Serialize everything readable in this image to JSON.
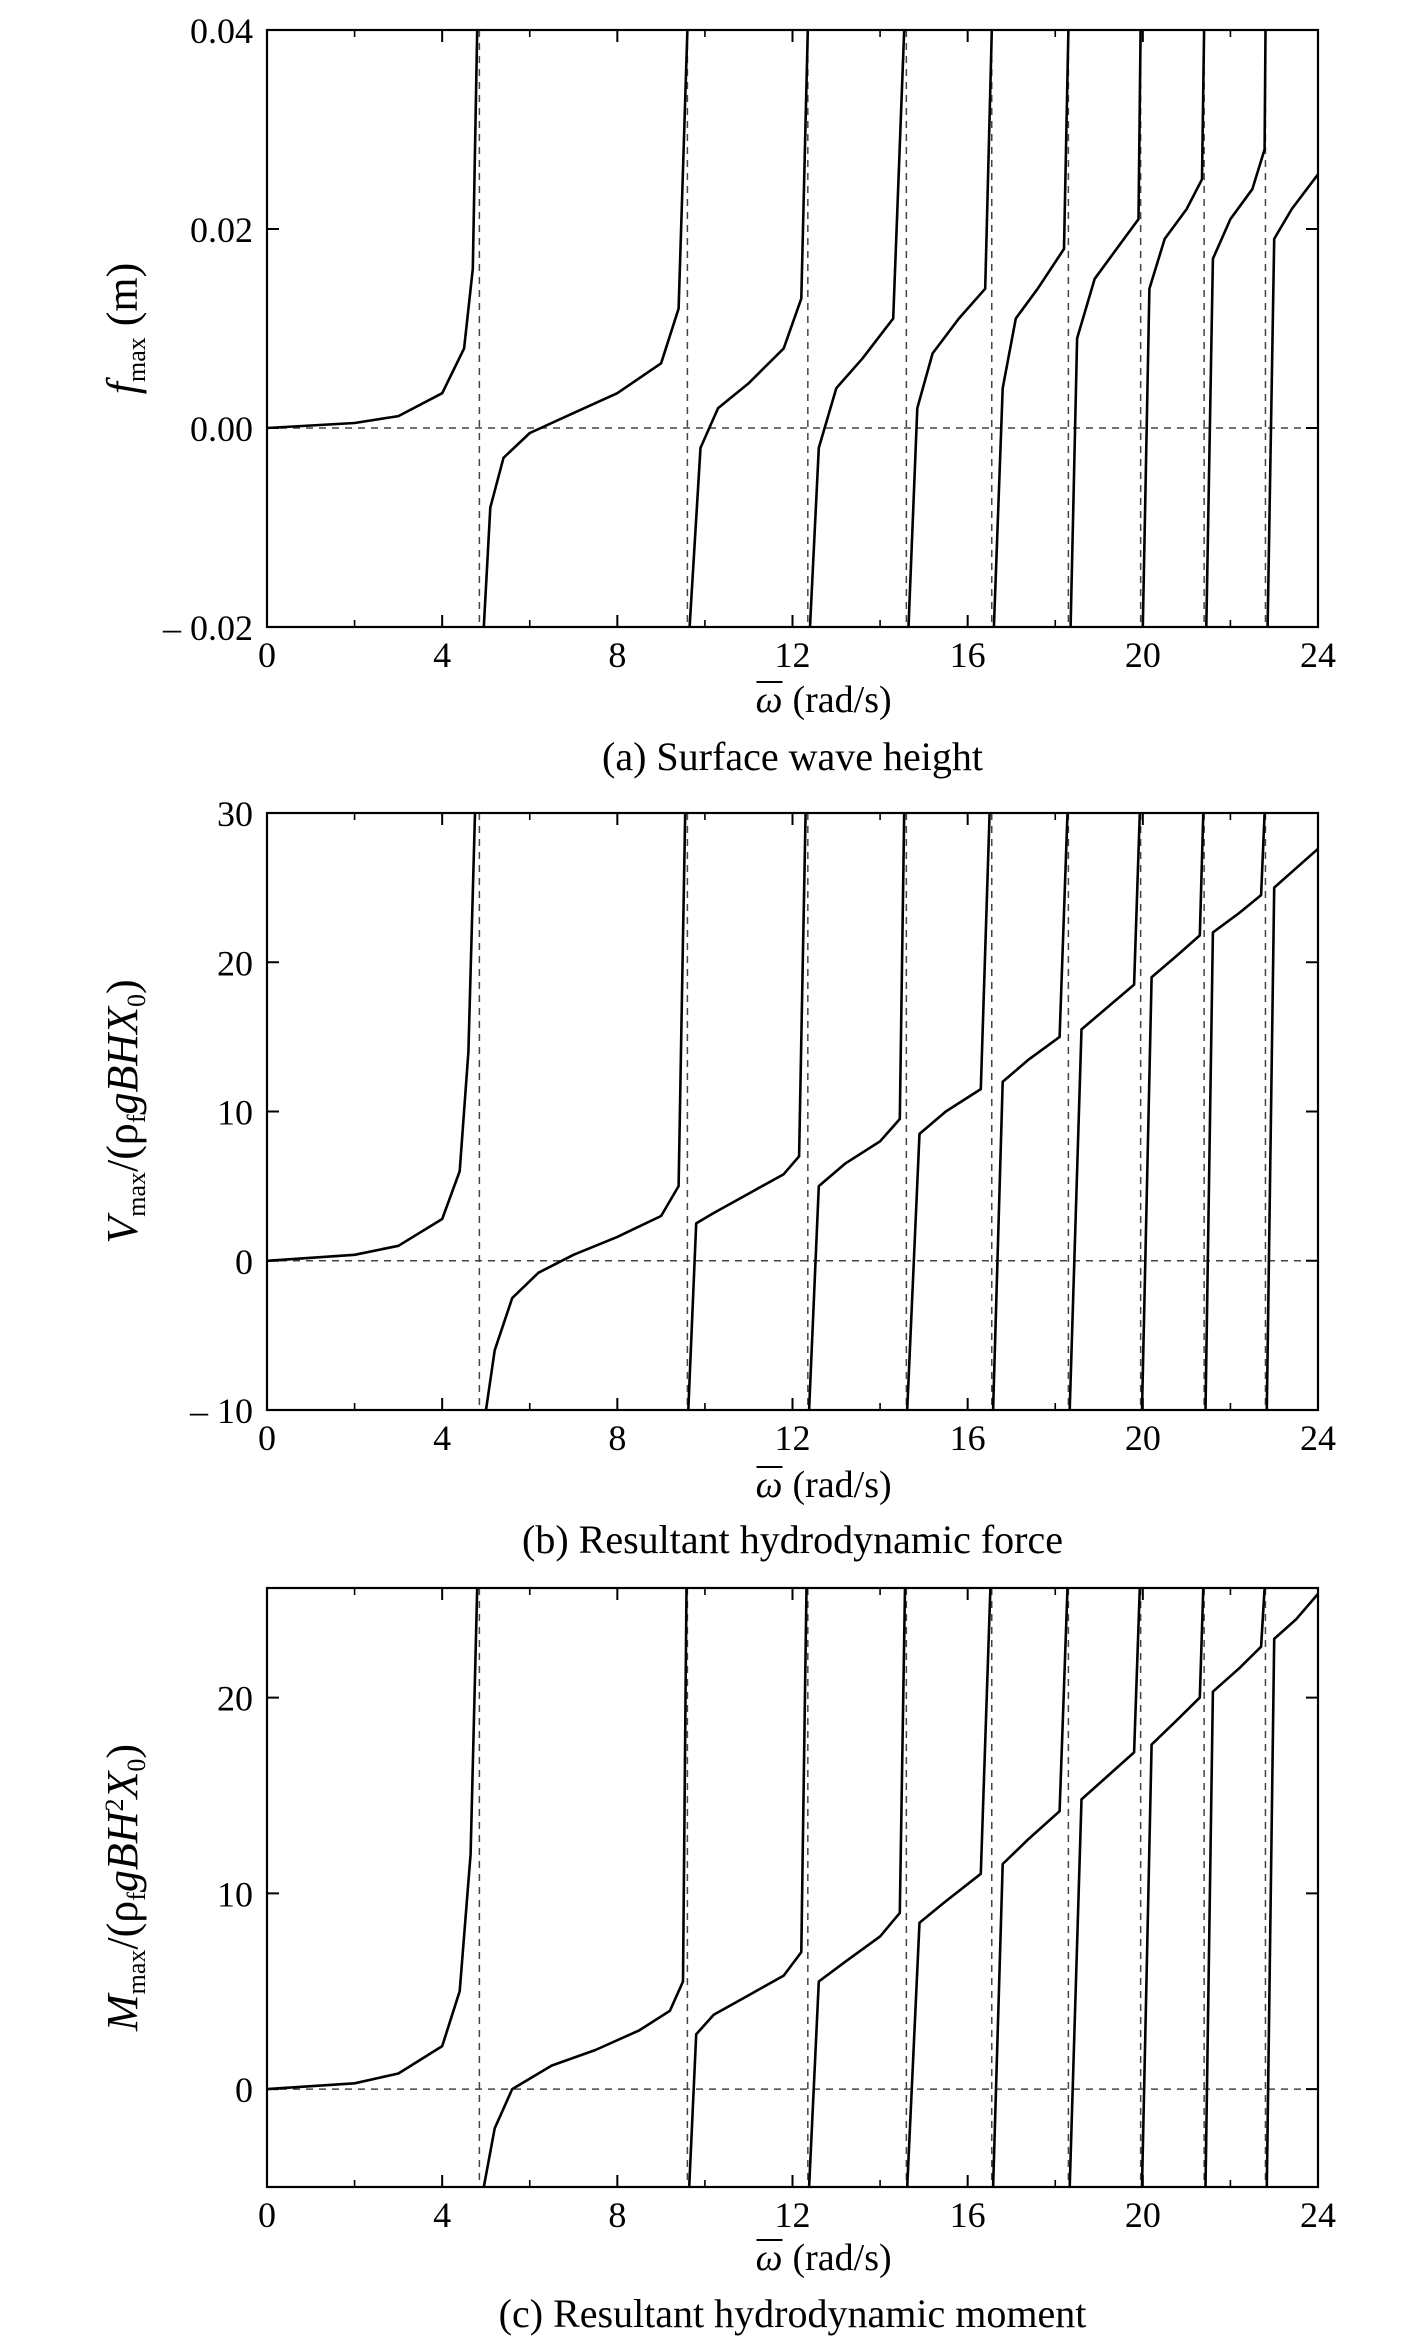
{
  "chart_data": [
    {
      "type": "line",
      "caption": "(a) Surface wave height",
      "ylabel_parts": {
        "sym": "f",
        "sub": "max",
        "rest": " (m)"
      },
      "xlabel": "(rad/s)",
      "xlabel_symbol": "ω",
      "xlim": [
        0,
        24
      ],
      "ylim": [
        -0.02,
        0.04
      ],
      "xticks": [
        0,
        4,
        8,
        12,
        16,
        20,
        24
      ],
      "xtick_labels": [
        "0",
        "4",
        "8",
        "12",
        "16",
        "20",
        "24"
      ],
      "yticks": [
        -0.02,
        0.0,
        0.02,
        0.04
      ],
      "ytick_labels": [
        "– 0.02",
        "0.00",
        "0.02",
        "0.04"
      ],
      "reference_lines": {
        "y": [
          0
        ],
        "x": [
          4.85,
          9.6,
          12.35,
          14.6,
          16.55,
          18.3,
          19.95,
          21.4,
          22.8
        ]
      },
      "series": [
        {
          "x": [
            0,
            2,
            3,
            4,
            4.5,
            4.7,
            4.8
          ],
          "y": [
            0,
            0.0005,
            0.0012,
            0.0035,
            0.008,
            0.016,
            0.04
          ]
        },
        {
          "x": [
            4.95,
            5.1,
            5.4,
            6.0,
            7.0,
            8.0,
            9.0,
            9.4,
            9.6
          ],
          "y": [
            -0.02,
            -0.008,
            -0.003,
            -0.0005,
            0.0015,
            0.0035,
            0.0065,
            0.012,
            0.04
          ]
        },
        {
          "x": [
            9.65,
            9.9,
            10.3,
            11.0,
            11.8,
            12.2,
            12.35
          ],
          "y": [
            -0.02,
            -0.002,
            0.002,
            0.0045,
            0.008,
            0.013,
            0.04
          ]
        },
        {
          "x": [
            12.4,
            12.6,
            13.0,
            13.6,
            14.3,
            14.55
          ],
          "y": [
            -0.02,
            -0.002,
            0.004,
            0.007,
            0.011,
            0.04
          ]
        },
        {
          "x": [
            14.65,
            14.85,
            15.2,
            15.8,
            16.4,
            16.55
          ],
          "y": [
            -0.02,
            0.002,
            0.0075,
            0.011,
            0.014,
            0.04
          ]
        },
        {
          "x": [
            16.6,
            16.8,
            17.1,
            17.6,
            18.2,
            18.3
          ],
          "y": [
            -0.02,
            0.004,
            0.011,
            0.014,
            0.018,
            0.04
          ]
        },
        {
          "x": [
            18.35,
            18.5,
            18.9,
            19.4,
            19.9,
            19.95
          ],
          "y": [
            -0.02,
            0.009,
            0.015,
            0.018,
            0.021,
            0.04
          ]
        },
        {
          "x": [
            20.0,
            20.15,
            20.5,
            21.0,
            21.35,
            21.4
          ],
          "y": [
            -0.02,
            0.014,
            0.019,
            0.022,
            0.025,
            0.04
          ]
        },
        {
          "x": [
            21.45,
            21.6,
            22.0,
            22.5,
            22.78,
            22.8
          ],
          "y": [
            -0.02,
            0.017,
            0.021,
            0.024,
            0.028,
            0.04
          ]
        },
        {
          "x": [
            22.85,
            23.0,
            23.4,
            24.0
          ],
          "y": [
            -0.02,
            0.019,
            0.022,
            0.0255
          ]
        }
      ]
    },
    {
      "type": "line",
      "caption": "(b) Resultant hydrodynamic force",
      "ylabel_parts": {
        "sym": "V",
        "sub": "max",
        "rest": "/(ρ",
        "sub2": "f",
        "rest2": "gBHX",
        "sub3": "0",
        "rest3": ")"
      },
      "xlabel": "(rad/s)",
      "xlabel_symbol": "ω",
      "xlim": [
        0,
        24
      ],
      "ylim": [
        -10,
        30
      ],
      "xticks": [
        0,
        4,
        8,
        12,
        16,
        20,
        24
      ],
      "xtick_labels": [
        "0",
        "4",
        "8",
        "12",
        "16",
        "20",
        "24"
      ],
      "yticks": [
        -10,
        0,
        10,
        20,
        30
      ],
      "ytick_labels": [
        "– 10",
        "0",
        "10",
        "20",
        "30"
      ],
      "reference_lines": {
        "y": [
          0
        ],
        "x": [
          4.85,
          9.6,
          12.35,
          14.6,
          16.55,
          18.3,
          19.95,
          21.4,
          22.8
        ]
      },
      "series": [
        {
          "x": [
            0,
            2,
            3,
            4,
            4.4,
            4.6,
            4.75
          ],
          "y": [
            0,
            0.4,
            1.0,
            2.8,
            6.0,
            14,
            30
          ]
        },
        {
          "x": [
            5.0,
            5.2,
            5.6,
            6.2,
            7.0,
            8.0,
            9.0,
            9.4,
            9.55
          ],
          "y": [
            -10,
            -6,
            -2.5,
            -0.8,
            0.4,
            1.6,
            3.0,
            5.0,
            30
          ]
        },
        {
          "x": [
            9.62,
            9.8,
            10.2,
            11.0,
            11.8,
            12.15,
            12.3
          ],
          "y": [
            -10,
            2.5,
            3.2,
            4.5,
            5.8,
            7.0,
            30
          ]
        },
        {
          "x": [
            12.38,
            12.6,
            13.2,
            14.0,
            14.45,
            14.55
          ],
          "y": [
            -10,
            5.0,
            6.5,
            8.0,
            9.5,
            30
          ]
        },
        {
          "x": [
            14.62,
            14.9,
            15.5,
            16.3,
            16.5
          ],
          "y": [
            -10,
            8.5,
            10.0,
            11.5,
            30
          ]
        },
        {
          "x": [
            16.58,
            16.8,
            17.4,
            18.1,
            18.28
          ],
          "y": [
            -10,
            12.0,
            13.5,
            15.0,
            30
          ]
        },
        {
          "x": [
            18.33,
            18.6,
            19.2,
            19.8,
            19.93
          ],
          "y": [
            -10,
            15.5,
            17.0,
            18.5,
            30
          ]
        },
        {
          "x": [
            19.98,
            20.2,
            20.8,
            21.3,
            21.38
          ],
          "y": [
            -10,
            19.0,
            20.5,
            21.8,
            30
          ]
        },
        {
          "x": [
            21.43,
            21.6,
            22.2,
            22.7,
            22.78
          ],
          "y": [
            -10,
            22.0,
            23.3,
            24.5,
            30
          ]
        },
        {
          "x": [
            22.83,
            23.0,
            23.5,
            24.0
          ],
          "y": [
            -10,
            25.0,
            26.3,
            27.6
          ]
        }
      ]
    },
    {
      "type": "line",
      "caption": "(c) Resultant hydrodynamic moment",
      "ylabel_parts": {
        "sym": "M",
        "sub": "max",
        "rest": "/(ρ",
        "sub2": "f",
        "rest2": "gBH",
        "sup": "2",
        "rest3": "X",
        "sub3": "0",
        "rest4": ")"
      },
      "xlabel": "(rad/s)",
      "xlabel_symbol": "ω",
      "xlim": [
        0,
        24
      ],
      "ylim": [
        -5,
        25.6
      ],
      "xticks": [
        0,
        4,
        8,
        12,
        16,
        20,
        24
      ],
      "xtick_labels": [
        "0",
        "4",
        "8",
        "12",
        "16",
        "20",
        "24"
      ],
      "yticks": [
        0,
        10,
        20
      ],
      "ytick_labels": [
        "0",
        "10",
        "20"
      ],
      "reference_lines": {
        "y": [
          0
        ],
        "x": [
          4.85,
          9.6,
          12.35,
          14.6,
          16.55,
          18.3,
          19.95,
          21.4,
          22.8
        ]
      },
      "series": [
        {
          "x": [
            0,
            2,
            3,
            4,
            4.4,
            4.65,
            4.8
          ],
          "y": [
            0,
            0.3,
            0.8,
            2.2,
            5.0,
            12,
            25.6
          ]
        },
        {
          "x": [
            4.95,
            5.2,
            5.6,
            6.5,
            7.5,
            8.5,
            9.2,
            9.5,
            9.58
          ],
          "y": [
            -5,
            -2.0,
            0.0,
            1.2,
            2.0,
            3.0,
            4.0,
            5.5,
            25.6
          ]
        },
        {
          "x": [
            9.64,
            9.8,
            10.2,
            11.0,
            11.8,
            12.2,
            12.32
          ],
          "y": [
            -5,
            2.8,
            3.8,
            4.8,
            5.8,
            7.0,
            25.6
          ]
        },
        {
          "x": [
            12.38,
            12.6,
            13.2,
            14.0,
            14.45,
            14.57
          ],
          "y": [
            -5,
            5.5,
            6.5,
            7.8,
            9.0,
            25.6
          ]
        },
        {
          "x": [
            14.62,
            14.9,
            15.5,
            16.3,
            16.52
          ],
          "y": [
            -5,
            8.5,
            9.6,
            11.0,
            25.6
          ]
        },
        {
          "x": [
            16.58,
            16.8,
            17.4,
            18.1,
            18.28
          ],
          "y": [
            -5,
            11.5,
            12.8,
            14.2,
            25.6
          ]
        },
        {
          "x": [
            18.33,
            18.6,
            19.2,
            19.8,
            19.93
          ],
          "y": [
            -5,
            14.8,
            16.0,
            17.2,
            25.6
          ]
        },
        {
          "x": [
            19.98,
            20.2,
            20.8,
            21.3,
            21.38
          ],
          "y": [
            -5,
            17.6,
            18.9,
            20.0,
            25.6
          ]
        },
        {
          "x": [
            21.43,
            21.6,
            22.2,
            22.7,
            22.78
          ],
          "y": [
            -5,
            20.3,
            21.5,
            22.6,
            25.6
          ]
        },
        {
          "x": [
            22.83,
            23.0,
            23.5,
            24.0
          ],
          "y": [
            -5,
            23.0,
            24.0,
            25.3
          ]
        }
      ]
    }
  ]
}
